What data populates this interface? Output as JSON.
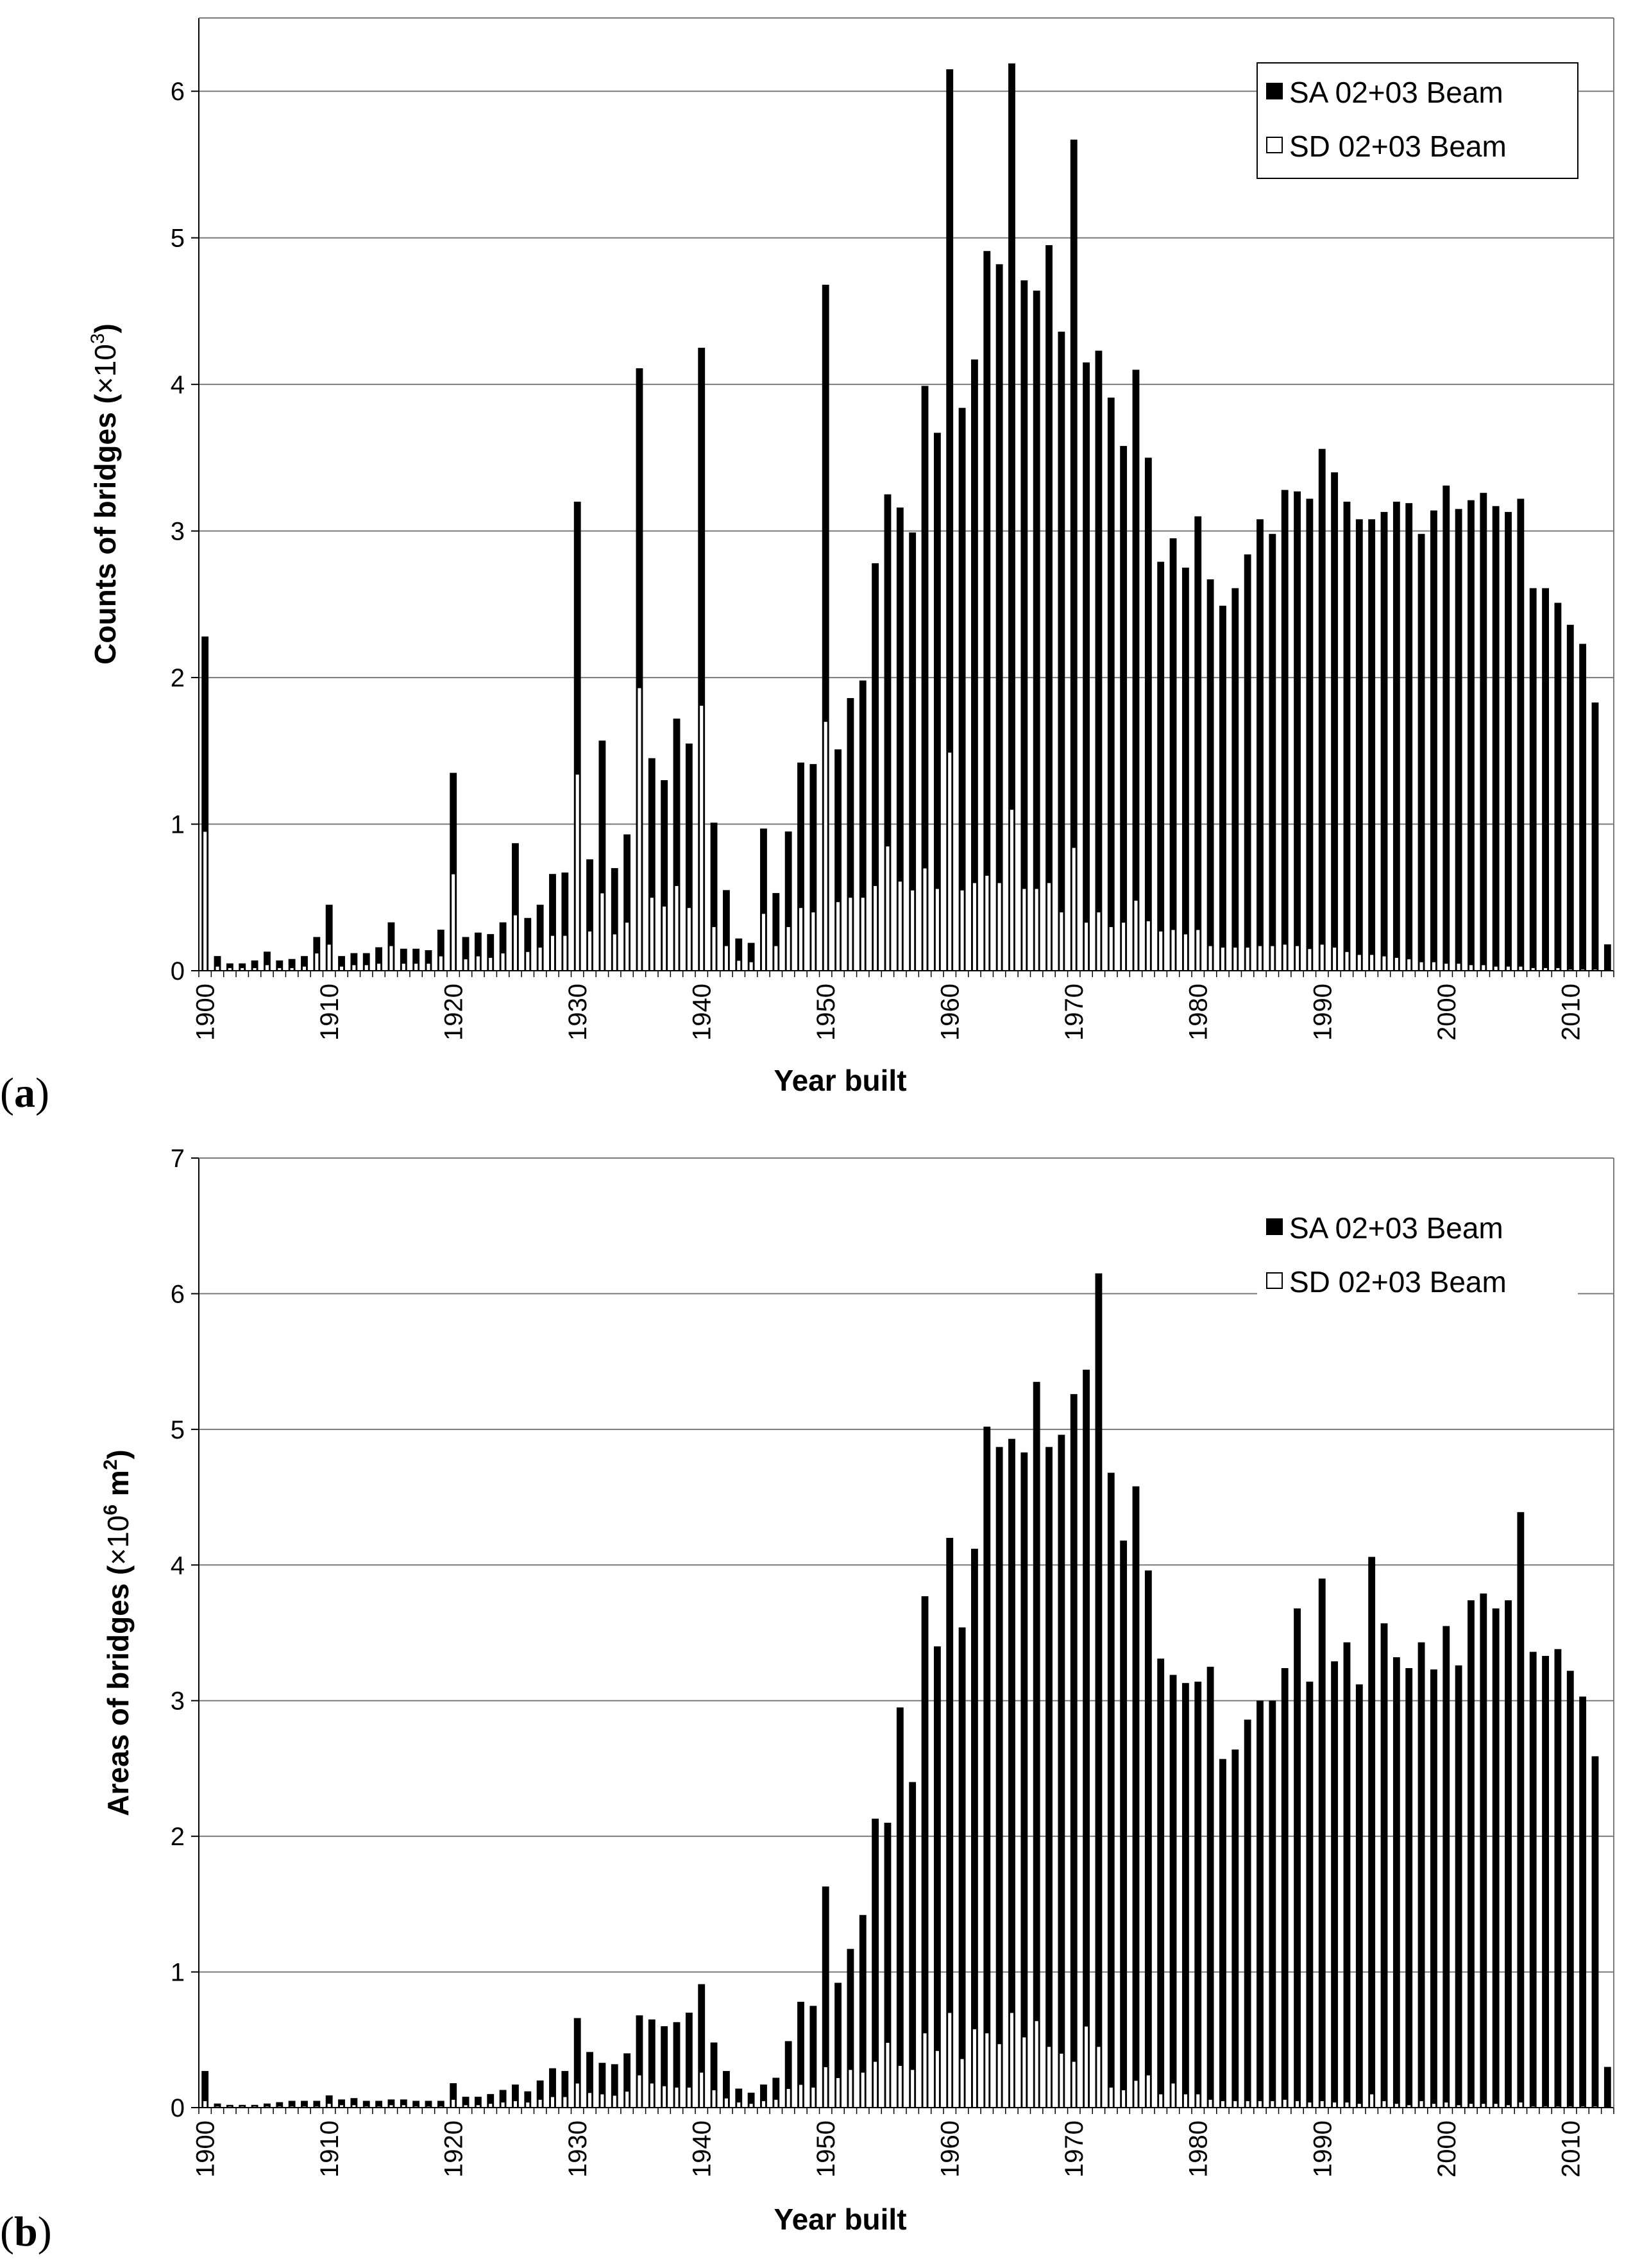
{
  "chart_data": [
    {
      "type": "bar",
      "panel_label": "a",
      "title": "",
      "xlabel": "Year built",
      "ylabel": "Counts of bridges (×10³)",
      "ylabel_parts": {
        "main": "Counts of bridges (",
        "sym": "×10",
        "sup": "3",
        "end": ")"
      },
      "ylim": [
        0,
        6.5
      ],
      "yticks": [
        0,
        1,
        2,
        3,
        4,
        5,
        6
      ],
      "xtick_labels": [
        "1900",
        "1910",
        "1920",
        "1930",
        "1940",
        "1950",
        "1960",
        "1970",
        "1980",
        "1990",
        "2000",
        "2010"
      ],
      "legend": {
        "position": "top-right",
        "entries": [
          "SA 02+03 Beam",
          "SD 02+03 Beam"
        ]
      },
      "grid": true,
      "overlay": true,
      "x": [
        1900,
        1901,
        1902,
        1903,
        1904,
        1905,
        1906,
        1907,
        1908,
        1909,
        1910,
        1911,
        1912,
        1913,
        1914,
        1915,
        1916,
        1917,
        1918,
        1919,
        1920,
        1921,
        1922,
        1923,
        1924,
        1925,
        1926,
        1927,
        1928,
        1929,
        1930,
        1931,
        1932,
        1933,
        1934,
        1935,
        1936,
        1937,
        1938,
        1939,
        1940,
        1941,
        1942,
        1943,
        1944,
        1945,
        1946,
        1947,
        1948,
        1949,
        1950,
        1951,
        1952,
        1953,
        1954,
        1955,
        1956,
        1957,
        1958,
        1959,
        1960,
        1961,
        1962,
        1963,
        1964,
        1965,
        1966,
        1967,
        1968,
        1969,
        1970,
        1971,
        1972,
        1973,
        1974,
        1975,
        1976,
        1977,
        1978,
        1979,
        1980,
        1981,
        1982,
        1983,
        1984,
        1985,
        1986,
        1987,
        1988,
        1989,
        1990,
        1991,
        1992,
        1993,
        1994,
        1995,
        1996,
        1997,
        1998,
        1999,
        2000,
        2001,
        2002,
        2003,
        2004,
        2005,
        2006,
        2007,
        2008,
        2009,
        2010,
        2011,
        2012,
        2013
      ],
      "series": [
        {
          "name": "SA 02+03 Beam",
          "color": "#000000",
          "values": [
            2.28,
            0.1,
            0.05,
            0.05,
            0.07,
            0.13,
            0.07,
            0.08,
            0.1,
            0.23,
            0.45,
            0.1,
            0.12,
            0.12,
            0.16,
            0.33,
            0.15,
            0.15,
            0.14,
            0.28,
            1.35,
            0.23,
            0.26,
            0.25,
            0.33,
            0.87,
            0.36,
            0.45,
            0.66,
            0.67,
            3.2,
            0.76,
            1.57,
            0.7,
            0.93,
            4.11,
            1.45,
            1.3,
            1.72,
            1.55,
            4.25,
            1.01,
            0.55,
            0.22,
            0.19,
            0.97,
            0.53,
            0.95,
            1.42,
            1.41,
            4.68,
            1.51,
            1.86,
            1.98,
            2.78,
            3.25,
            3.16,
            2.99,
            3.99,
            3.67,
            6.15,
            3.84,
            4.17,
            4.91,
            4.82,
            6.19,
            4.71,
            4.64,
            4.95,
            4.36,
            5.67,
            4.15,
            4.23,
            3.91,
            3.58,
            4.1,
            3.5,
            2.79,
            2.95,
            2.75,
            3.1,
            2.67,
            2.49,
            2.61,
            2.84,
            3.08,
            2.98,
            3.28,
            3.27,
            3.22,
            3.56,
            3.4,
            3.2,
            3.08,
            3.08,
            3.13,
            3.2,
            3.19,
            2.98,
            3.14,
            3.31,
            3.15,
            3.21,
            3.26,
            3.17,
            3.13,
            3.22,
            2.61,
            2.61,
            2.51,
            2.36,
            2.23,
            1.83,
            0.18
          ]
        },
        {
          "name": "SD 02+03 Beam",
          "color": "#ffffff",
          "values": [
            0.95,
            0.03,
            0.02,
            0.02,
            0.02,
            0.04,
            0.02,
            0.02,
            0.03,
            0.12,
            0.18,
            0.03,
            0.04,
            0.04,
            0.05,
            0.17,
            0.05,
            0.05,
            0.05,
            0.1,
            0.66,
            0.08,
            0.1,
            0.09,
            0.12,
            0.38,
            0.13,
            0.16,
            0.24,
            0.24,
            1.34,
            0.27,
            0.53,
            0.25,
            0.33,
            1.93,
            0.5,
            0.44,
            0.58,
            0.43,
            1.81,
            0.3,
            0.17,
            0.07,
            0.06,
            0.39,
            0.17,
            0.3,
            0.43,
            0.4,
            1.7,
            0.47,
            0.5,
            0.5,
            0.58,
            0.85,
            0.61,
            0.55,
            0.7,
            0.56,
            1.49,
            0.55,
            0.6,
            0.65,
            0.6,
            1.1,
            0.56,
            0.56,
            0.6,
            0.4,
            0.84,
            0.33,
            0.4,
            0.3,
            0.33,
            0.48,
            0.34,
            0.27,
            0.28,
            0.25,
            0.28,
            0.17,
            0.16,
            0.16,
            0.16,
            0.17,
            0.17,
            0.18,
            0.17,
            0.15,
            0.18,
            0.16,
            0.13,
            0.11,
            0.11,
            0.1,
            0.09,
            0.08,
            0.06,
            0.06,
            0.05,
            0.05,
            0.04,
            0.04,
            0.03,
            0.03,
            0.03,
            0.02,
            0.02,
            0.02,
            0.01,
            0.01,
            0.01,
            0.0
          ]
        }
      ]
    },
    {
      "type": "bar",
      "panel_label": "b",
      "title": "",
      "xlabel": "Year built",
      "ylabel": "Areas of bridges (×10⁶ m²)",
      "ylabel_parts": {
        "main": "Areas of bridges (",
        "sym": "×10",
        "sup": "6",
        "mid": " m",
        "sup2": "2",
        "end": ")"
      },
      "ylim": [
        0,
        7
      ],
      "yticks": [
        0,
        1,
        2,
        3,
        4,
        5,
        6,
        7
      ],
      "xtick_labels": [
        "1900",
        "1910",
        "1920",
        "1930",
        "1940",
        "1950",
        "1960",
        "1970",
        "1980",
        "1990",
        "2000",
        "2010"
      ],
      "legend": {
        "position": "top-right",
        "entries": [
          "SA 02+03 Beam",
          "SD 02+03 Beam"
        ]
      },
      "grid": true,
      "overlay": true,
      "x": [
        1900,
        1901,
        1902,
        1903,
        1904,
        1905,
        1906,
        1907,
        1908,
        1909,
        1910,
        1911,
        1912,
        1913,
        1914,
        1915,
        1916,
        1917,
        1918,
        1919,
        1920,
        1921,
        1922,
        1923,
        1924,
        1925,
        1926,
        1927,
        1928,
        1929,
        1930,
        1931,
        1932,
        1933,
        1934,
        1935,
        1936,
        1937,
        1938,
        1939,
        1940,
        1941,
        1942,
        1943,
        1944,
        1945,
        1946,
        1947,
        1948,
        1949,
        1950,
        1951,
        1952,
        1953,
        1954,
        1955,
        1956,
        1957,
        1958,
        1959,
        1960,
        1961,
        1962,
        1963,
        1964,
        1965,
        1966,
        1967,
        1968,
        1969,
        1970,
        1971,
        1972,
        1973,
        1974,
        1975,
        1976,
        1977,
        1978,
        1979,
        1980,
        1981,
        1982,
        1983,
        1984,
        1985,
        1986,
        1987,
        1988,
        1989,
        1990,
        1991,
        1992,
        1993,
        1994,
        1995,
        1996,
        1997,
        1998,
        1999,
        2000,
        2001,
        2002,
        2003,
        2004,
        2005,
        2006,
        2007,
        2008,
        2009,
        2010,
        2011,
        2012,
        2013
      ],
      "series": [
        {
          "name": "SA 02+03 Beam",
          "color": "#000000",
          "values": [
            0.27,
            0.03,
            0.02,
            0.02,
            0.02,
            0.03,
            0.04,
            0.05,
            0.05,
            0.05,
            0.09,
            0.06,
            0.07,
            0.05,
            0.05,
            0.06,
            0.06,
            0.05,
            0.05,
            0.05,
            0.18,
            0.08,
            0.08,
            0.1,
            0.13,
            0.17,
            0.12,
            0.2,
            0.29,
            0.27,
            0.66,
            0.41,
            0.33,
            0.32,
            0.4,
            0.68,
            0.65,
            0.6,
            0.63,
            0.7,
            0.91,
            0.48,
            0.27,
            0.14,
            0.11,
            0.17,
            0.22,
            0.49,
            0.78,
            0.75,
            1.63,
            0.92,
            1.17,
            1.42,
            2.13,
            2.1,
            2.95,
            2.4,
            3.77,
            3.4,
            4.2,
            3.54,
            4.12,
            5.02,
            4.87,
            4.93,
            4.83,
            5.35,
            4.87,
            4.96,
            5.26,
            5.44,
            6.15,
            4.68,
            4.18,
            4.58,
            3.96,
            3.31,
            3.19,
            3.13,
            3.14,
            3.25,
            2.57,
            2.64,
            2.86,
            3.0,
            3.0,
            3.24,
            3.68,
            3.14,
            3.9,
            3.29,
            3.43,
            3.12,
            4.06,
            3.57,
            3.32,
            3.24,
            3.43,
            3.23,
            3.55,
            3.26,
            3.74,
            3.79,
            3.68,
            3.74,
            4.39,
            3.36,
            3.33,
            3.38,
            3.22,
            3.03,
            2.59,
            0.3
          ]
        },
        {
          "name": "SD 02+03 Beam",
          "color": "#ffffff",
          "values": [
            0.05,
            0.01,
            0.01,
            0.01,
            0.01,
            0.01,
            0.01,
            0.01,
            0.01,
            0.01,
            0.03,
            0.02,
            0.02,
            0.01,
            0.01,
            0.02,
            0.02,
            0.01,
            0.01,
            0.01,
            0.06,
            0.02,
            0.02,
            0.03,
            0.04,
            0.05,
            0.04,
            0.06,
            0.08,
            0.08,
            0.18,
            0.11,
            0.1,
            0.09,
            0.12,
            0.24,
            0.18,
            0.16,
            0.15,
            0.15,
            0.26,
            0.13,
            0.07,
            0.04,
            0.03,
            0.05,
            0.06,
            0.14,
            0.17,
            0.15,
            0.3,
            0.22,
            0.28,
            0.26,
            0.34,
            0.48,
            0.31,
            0.28,
            0.55,
            0.42,
            0.7,
            0.36,
            0.58,
            0.55,
            0.47,
            0.7,
            0.52,
            0.64,
            0.45,
            0.4,
            0.34,
            0.6,
            0.45,
            0.15,
            0.13,
            0.2,
            0.24,
            0.1,
            0.18,
            0.1,
            0.1,
            0.06,
            0.05,
            0.05,
            0.05,
            0.05,
            0.05,
            0.06,
            0.05,
            0.04,
            0.05,
            0.04,
            0.04,
            0.03,
            0.1,
            0.05,
            0.03,
            0.02,
            0.05,
            0.03,
            0.04,
            0.02,
            0.03,
            0.03,
            0.03,
            0.02,
            0.04,
            0.01,
            0.01,
            0.01,
            0.01,
            0.01,
            0.01,
            0.0
          ]
        }
      ]
    }
  ]
}
